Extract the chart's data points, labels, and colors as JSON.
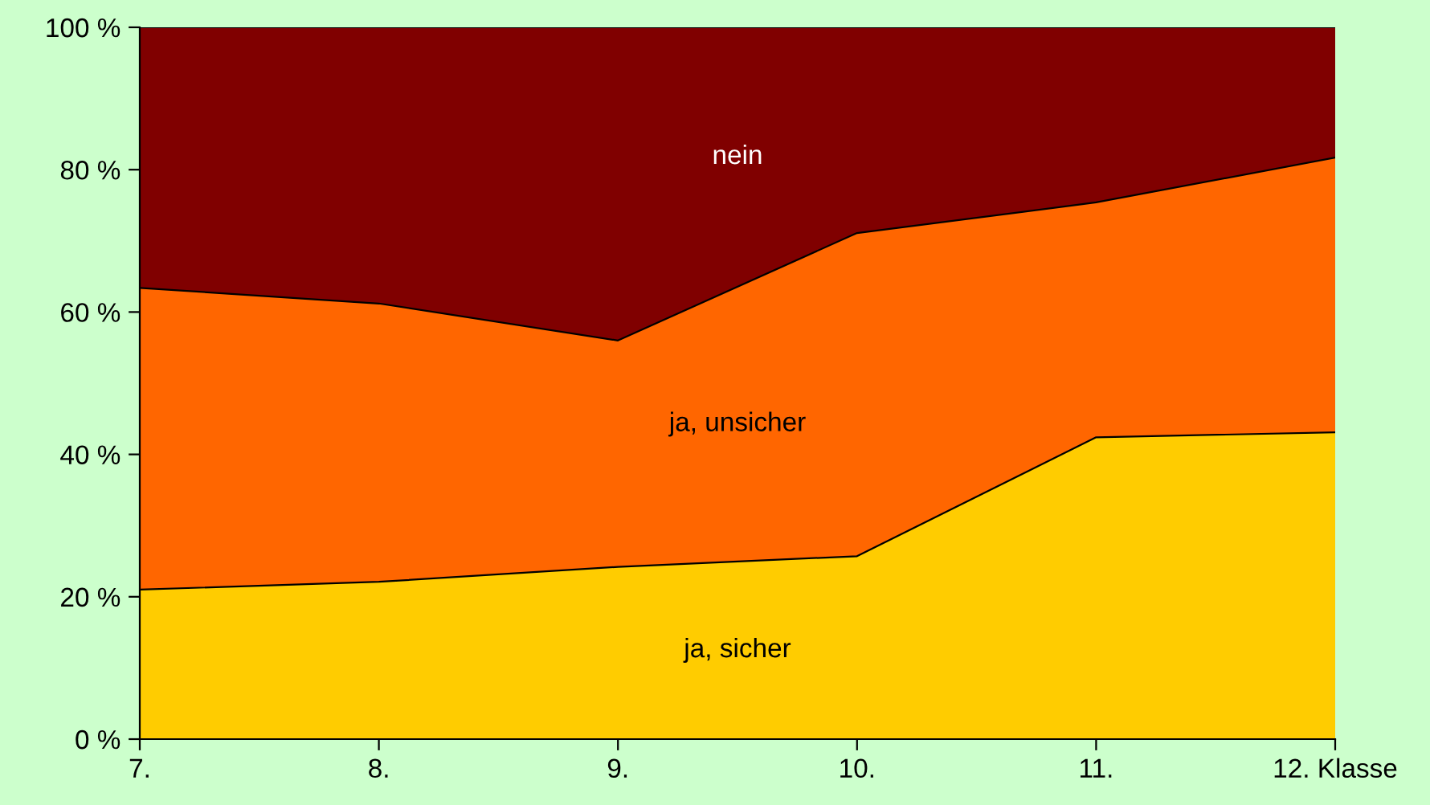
{
  "chart_data": {
    "type": "area",
    "stacked": true,
    "categories": [
      "7.",
      "8.",
      "9.",
      "10.",
      "11.",
      "12. Klasse"
    ],
    "series": [
      {
        "name": "ja, sicher",
        "color": "#ffcc00",
        "values": [
          21.0,
          22.1,
          24.2,
          25.7,
          42.4,
          43.1
        ]
      },
      {
        "name": "ja, unsicher",
        "color": "#ff6600",
        "values": [
          42.4,
          39.1,
          31.8,
          45.4,
          33.0,
          38.6
        ]
      },
      {
        "name": "nein",
        "color": "#800000",
        "values": [
          36.6,
          38.8,
          44.0,
          28.9,
          24.6,
          18.3
        ]
      }
    ],
    "ylim": [
      0,
      100
    ],
    "yticks": [
      {
        "value": 0,
        "label": "0 %"
      },
      {
        "value": 20,
        "label": "20 %"
      },
      {
        "value": 40,
        "label": "40 %"
      },
      {
        "value": 60,
        "label": "60 %"
      },
      {
        "value": 80,
        "label": "80 %"
      },
      {
        "value": 100,
        "label": "100 %"
      }
    ],
    "grid": false,
    "legend": false
  }
}
